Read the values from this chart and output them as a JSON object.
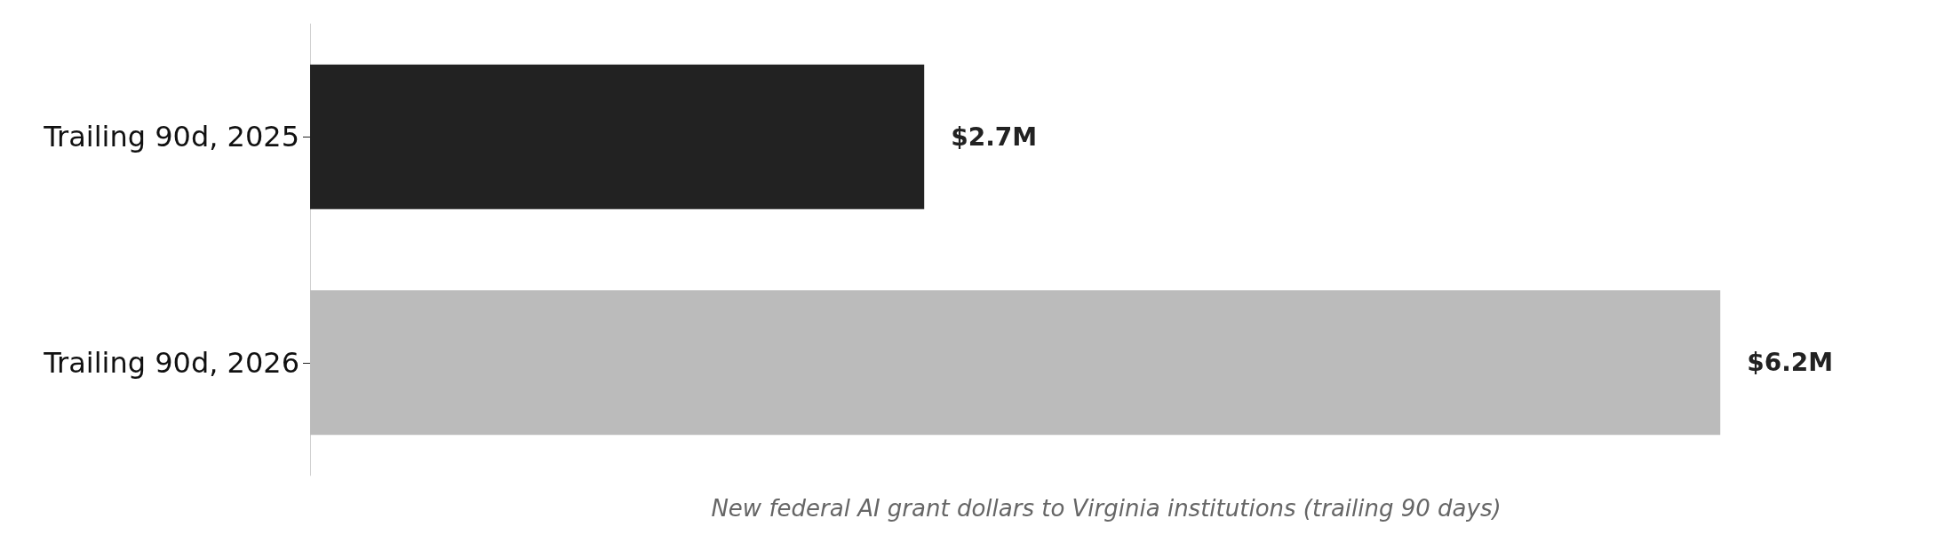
{
  "chart_data": {
    "type": "bar",
    "orientation": "horizontal",
    "xlabel": "New federal AI grant dollars to Virginia institutions (trailing 90 days)",
    "categories": [
      "Trailing 90d, 2025",
      "Trailing 90d, 2026"
    ],
    "values": [
      2.7,
      6.2
    ],
    "colors": [
      "#222222",
      "#bbbbbb"
    ],
    "value_labels": [
      "$2.7M",
      "$6.2M"
    ],
    "grid": false,
    "tick_labels": "y"
  }
}
